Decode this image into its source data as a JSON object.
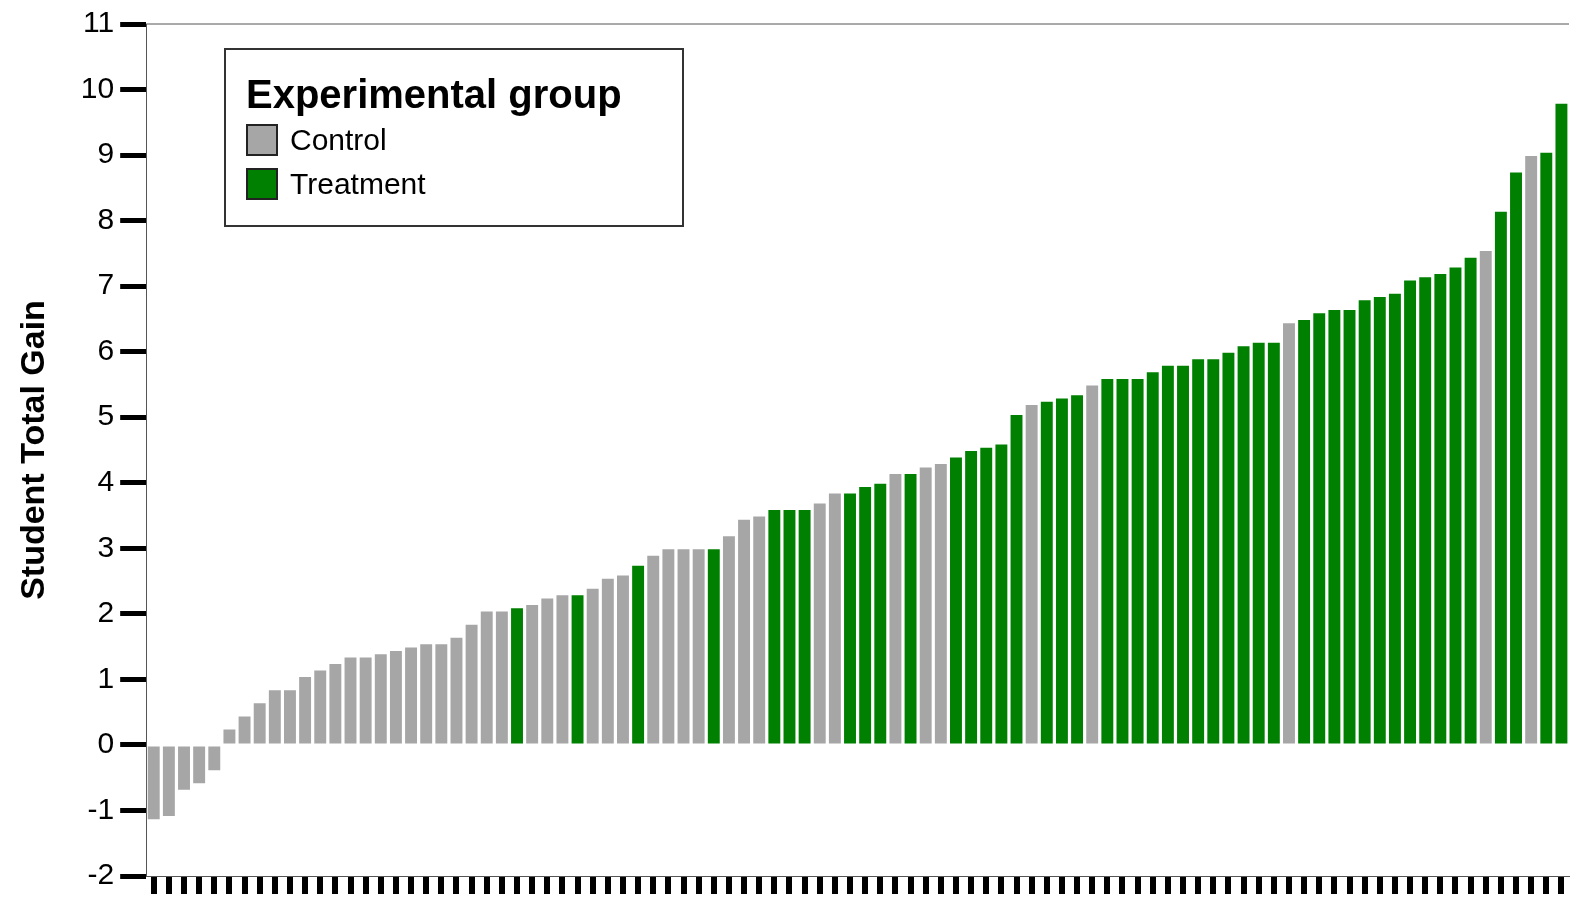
{
  "chart_data": {
    "type": "bar",
    "ylabel": "Student Total Gain",
    "legend_title": "Experimental group",
    "legend": "top left",
    "grid": false,
    "categories": [
      null,
      null,
      null,
      null,
      null,
      null,
      null,
      null,
      null,
      null,
      null,
      null,
      null,
      null,
      null,
      null,
      null,
      null,
      null,
      null,
      null,
      null,
      null,
      null,
      null,
      null,
      null,
      null,
      null,
      null,
      null,
      null,
      null,
      null,
      null,
      null,
      null,
      null,
      null,
      null,
      null,
      null,
      null,
      null,
      null,
      null,
      null,
      null,
      null,
      null,
      null,
      null,
      null,
      null,
      null,
      null,
      null,
      null,
      null,
      null,
      null,
      null,
      null,
      null,
      null,
      null,
      null,
      null,
      null,
      null,
      null,
      null,
      null,
      null,
      null,
      null,
      null,
      null,
      null,
      null,
      null,
      null,
      null,
      null,
      null,
      null,
      null,
      null,
      null,
      null,
      null,
      null,
      null,
      null
    ],
    "ylim": [
      -2,
      11
    ],
    "yticks": [
      -2,
      -1,
      0,
      1,
      2,
      3,
      4,
      5,
      6,
      7,
      8,
      9,
      10,
      11
    ],
    "series": [
      {
        "name": "Control",
        "color": "#a6a6a6",
        "values": [
          -1.15,
          -1.1,
          -0.7,
          -0.6,
          -0.4,
          0.25,
          0.45,
          0.65,
          0.85,
          0.85,
          1.05,
          1.15,
          1.25,
          1.35,
          1.35,
          1.4,
          1.45,
          1.5,
          1.55,
          1.55,
          1.65,
          1.85,
          2.05,
          2.05,
          null,
          2.15,
          2.25,
          2.3,
          null,
          2.4,
          2.55,
          2.6,
          null,
          2.9,
          3.0,
          3.0,
          3.0,
          null,
          3.2,
          3.45,
          3.5,
          null,
          null,
          null,
          3.7,
          3.85,
          null,
          null,
          null,
          4.15,
          null,
          4.25,
          4.3,
          null,
          null,
          null,
          null,
          null,
          5.2,
          null,
          null,
          null,
          5.5,
          null,
          null,
          null,
          null,
          null,
          null,
          null,
          null,
          null,
          null,
          null,
          null,
          6.45,
          null,
          null,
          null,
          null,
          null,
          null,
          null,
          null,
          null,
          null,
          null,
          null,
          7.55,
          null,
          null,
          9.0,
          null,
          null
        ]
      },
      {
        "name": "Treatment",
        "color": "#008000",
        "values": [
          null,
          null,
          null,
          null,
          null,
          null,
          null,
          null,
          null,
          null,
          null,
          null,
          null,
          null,
          null,
          null,
          null,
          null,
          null,
          null,
          null,
          null,
          null,
          null,
          2.1,
          null,
          null,
          null,
          2.3,
          null,
          null,
          null,
          2.75,
          null,
          null,
          null,
          null,
          3.0,
          null,
          null,
          null,
          3.6,
          3.6,
          3.6,
          null,
          null,
          3.85,
          3.95,
          4.0,
          null,
          4.15,
          null,
          null,
          4.4,
          4.5,
          4.55,
          4.6,
          5.05,
          null,
          5.25,
          5.3,
          5.35,
          null,
          5.6,
          5.6,
          5.6,
          5.7,
          5.8,
          5.8,
          5.9,
          5.9,
          6.0,
          6.1,
          6.15,
          6.15,
          null,
          6.5,
          6.6,
          6.65,
          6.65,
          6.8,
          6.85,
          6.9,
          7.1,
          7.15,
          7.2,
          7.3,
          7.45,
          null,
          8.15,
          8.75,
          null,
          9.05,
          9.8
        ]
      }
    ]
  }
}
